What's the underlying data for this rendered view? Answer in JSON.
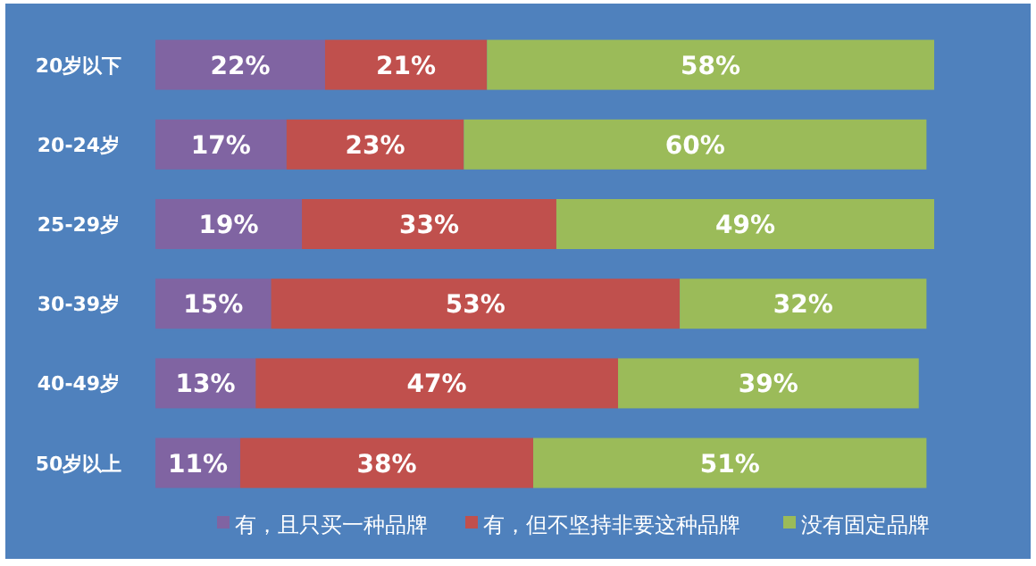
{
  "chart_data": {
    "type": "bar",
    "orientation": "horizontal",
    "stacked": true,
    "legend": "bottom",
    "categories": [
      "20岁以下",
      "20-24岁",
      "25-29岁",
      "30-39岁",
      "40-49岁",
      "50岁以上"
    ],
    "series": [
      {
        "name": "有，且只买一种品牌",
        "color": "#8064a2",
        "values": [
          22,
          17,
          19,
          15,
          13,
          11
        ],
        "value_labels": [
          "22%",
          "17%",
          "19%",
          "15%",
          "13%",
          "11%"
        ]
      },
      {
        "name": "有，但不坚持非要这种品牌",
        "color": "#c0504d",
        "values": [
          21,
          23,
          33,
          53,
          47,
          38
        ],
        "value_labels": [
          "21%",
          "23%",
          "33%",
          "53%",
          "47%",
          "38%"
        ]
      },
      {
        "name": "没有固定品牌",
        "color": "#9bbb59",
        "values": [
          58,
          60,
          49,
          32,
          39,
          51
        ],
        "value_labels": [
          "58%",
          "60%",
          "49%",
          "32%",
          "39%",
          "51%"
        ]
      }
    ]
  }
}
